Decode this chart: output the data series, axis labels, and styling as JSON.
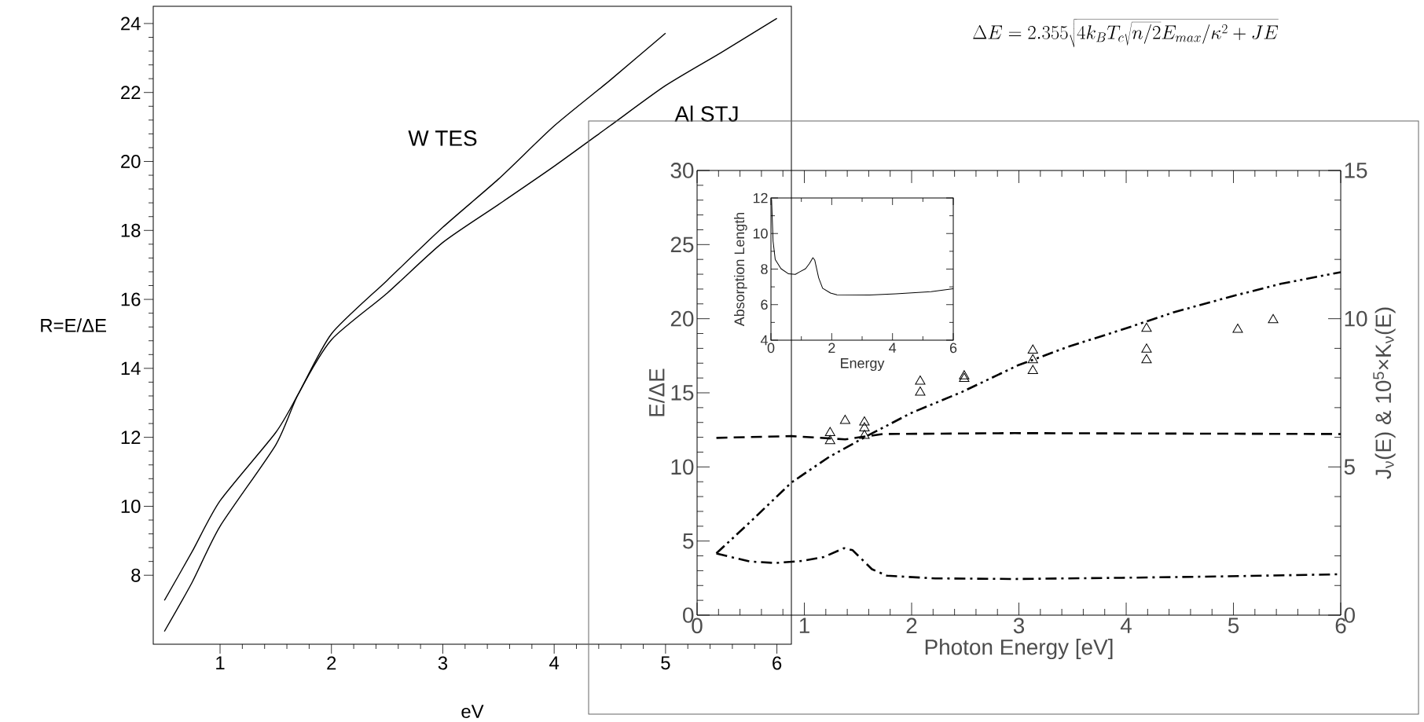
{
  "chart_data": [
    {
      "type": "line",
      "xlabel": "eV",
      "ylabel": "R=E/ΔE",
      "xlim": [
        0.4,
        6.13
      ],
      "ylim": [
        6,
        24.5
      ],
      "xticks": [
        1,
        2,
        3,
        4,
        5,
        6
      ],
      "yticks": [
        8,
        10,
        12,
        14,
        16,
        18,
        20,
        22,
        24
      ],
      "series": [
        {
          "name": "W TES",
          "color": "#000000",
          "x": [
            0.5,
            0.75,
            1,
            1.5,
            1.7,
            2,
            2.5,
            3,
            3.5,
            4,
            4.5,
            5
          ],
          "values": [
            7.27,
            8.69,
            10.16,
            12.14,
            13.24,
            15.0,
            16.55,
            18.09,
            19.49,
            21.03,
            22.35,
            23.72
          ]
        },
        {
          "name": "Al STJ",
          "color": "#000000",
          "x": [
            0.5,
            0.75,
            1,
            1.5,
            1.7,
            2,
            2.5,
            3,
            3.5,
            4,
            4.5,
            5,
            5.5,
            6
          ],
          "values": [
            6.37,
            7.8,
            9.42,
            11.78,
            13.24,
            14.83,
            16.18,
            17.65,
            18.75,
            19.86,
            21.03,
            22.2,
            23.16,
            24.15
          ]
        }
      ]
    },
    {
      "type": "line",
      "xlabel": "Photon Energy [eV]",
      "ylabel": "E/ΔE",
      "y2label": "J$_{ν}$(E) & 10$^{5}$×K$_{ν}$(E)",
      "xlim": [
        0,
        6
      ],
      "ylim": [
        0,
        30
      ],
      "y2lim": [
        0,
        15
      ],
      "xticks": [
        0,
        1,
        2,
        3,
        4,
        5,
        6
      ],
      "yticks": [
        0,
        5,
        10,
        15,
        20,
        25,
        30
      ],
      "y2ticks": [
        0,
        5,
        10,
        15
      ],
      "annotations": [
        "\\Delta E = 2.355\\sqrt{4k_BT_c\\sqrt{n/2}E_{max}/\\kappa^2+JE}"
      ],
      "series": [
        {
          "type": "line",
          "color": "#000000",
          "line_style": "dashdotdotted",
          "x": [
            0.18,
            0.49,
            0.88,
            1.23,
            1.58,
            1.99,
            2.47,
            2.99,
            3.46,
            3.99,
            4.45,
            4.99,
            5.44,
            6.0
          ],
          "values": [
            4.17,
            6.25,
            8.95,
            10.67,
            12.07,
            13.62,
            15.06,
            16.85,
            18.11,
            19.33,
            20.45,
            21.52,
            22.35,
            23.14
          ]
        },
        {
          "type": "line",
          "color": "#000000",
          "line_style": "dashed",
          "axis": "y2",
          "x": [
            0.18,
            0.88,
            1.38,
            1.73,
            2.96,
            6.0
          ],
          "values": [
            5.98,
            6.04,
            5.93,
            6.11,
            6.14,
            6.11
          ]
        },
        {
          "type": "line",
          "color": "#000000",
          "line_style": "dashdotted",
          "axis": "y2",
          "x": [
            0.18,
            0.49,
            0.73,
            0.98,
            1.18,
            1.37,
            1.45,
            1.63,
            1.77,
            2.22,
            2.96,
            3.96,
            4.95,
            6.0
          ],
          "values": [
            2.08,
            1.81,
            1.76,
            1.83,
            1.96,
            2.26,
            2.19,
            1.55,
            1.33,
            1.24,
            1.22,
            1.26,
            1.31,
            1.38
          ]
        },
        {
          "type": "scatter",
          "color": "#000000",
          "marker": "triangle",
          "x": [
            1.24,
            1.24,
            1.38,
            1.56,
            1.56,
            1.56,
            2.08,
            2.08,
            2.49,
            2.49,
            3.13,
            3.13,
            3.13,
            4.19,
            4.19,
            4.19,
            5.04,
            5.37
          ],
          "values": [
            12.29,
            11.75,
            13.12,
            13.01,
            12.61,
            12.11,
            15.77,
            15.02,
            16.13,
            15.95,
            17.86,
            17.21,
            16.49,
            19.33,
            17.93,
            17.21,
            19.26,
            19.91
          ]
        }
      ]
    },
    {
      "type": "line",
      "xlabel": "Energy",
      "ylabel": "Absorption Length",
      "xlim": [
        0,
        6
      ],
      "ylim": [
        4,
        12
      ],
      "xticks": [
        0,
        2,
        4,
        6
      ],
      "yticks": [
        4,
        6,
        8,
        10,
        12
      ],
      "series": [
        {
          "color": "#000000",
          "x": [
            0.02,
            0.07,
            0.14,
            0.33,
            0.58,
            0.8,
            0.93,
            1.14,
            1.27,
            1.38,
            1.44,
            1.57,
            1.7,
            1.96,
            2.17,
            3.25,
            4.11,
            5.27,
            6.0
          ],
          "values": [
            11.93,
            9.57,
            8.54,
            8.02,
            7.73,
            7.7,
            7.83,
            8.02,
            8.32,
            8.64,
            8.51,
            7.51,
            6.92,
            6.65,
            6.55,
            6.54,
            6.61,
            6.73,
            6.89
          ]
        }
      ]
    }
  ]
}
